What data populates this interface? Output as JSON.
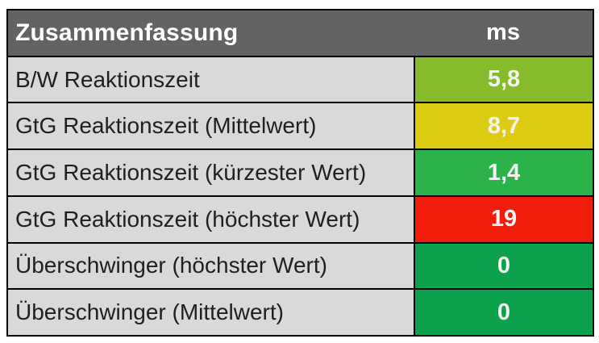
{
  "palette": {
    "header_bg": "#636363",
    "label_row_bg": "#d9d9d9",
    "border": "#000000",
    "header_text": "#ffffff",
    "label_text": "#1f1f1f",
    "value_text": "#f2f2f2",
    "rating_good_light": "#86bb2b",
    "rating_medium": "#dccc13",
    "rating_good": "#2bb24a",
    "rating_bad": "#f31c0c",
    "rating_best": "#0ba24b"
  },
  "chart_data": {
    "type": "table",
    "title": "Zusammenfassung",
    "unit": "ms",
    "rows": [
      {
        "label": "B/W Reaktionszeit",
        "value": "5,8",
        "value_ms": 5.8,
        "color": "#86bb2b"
      },
      {
        "label": "GtG Reaktionszeit (Mittelwert)",
        "value": "8,7",
        "value_ms": 8.7,
        "color": "#dccc13"
      },
      {
        "label": "GtG Reaktionszeit (kürzester Wert)",
        "value": "1,4",
        "value_ms": 1.4,
        "color": "#2bb24a"
      },
      {
        "label": "GtG Reaktionszeit (höchster Wert)",
        "value": "19",
        "value_ms": 19,
        "color": "#f31c0c"
      },
      {
        "label": "Überschwinger (höchster Wert)",
        "value": "0",
        "value_ms": 0,
        "color": "#0ba24b"
      },
      {
        "label": "Überschwinger (Mittelwert)",
        "value": "0",
        "value_ms": 0,
        "color": "#0ba24b"
      }
    ]
  }
}
